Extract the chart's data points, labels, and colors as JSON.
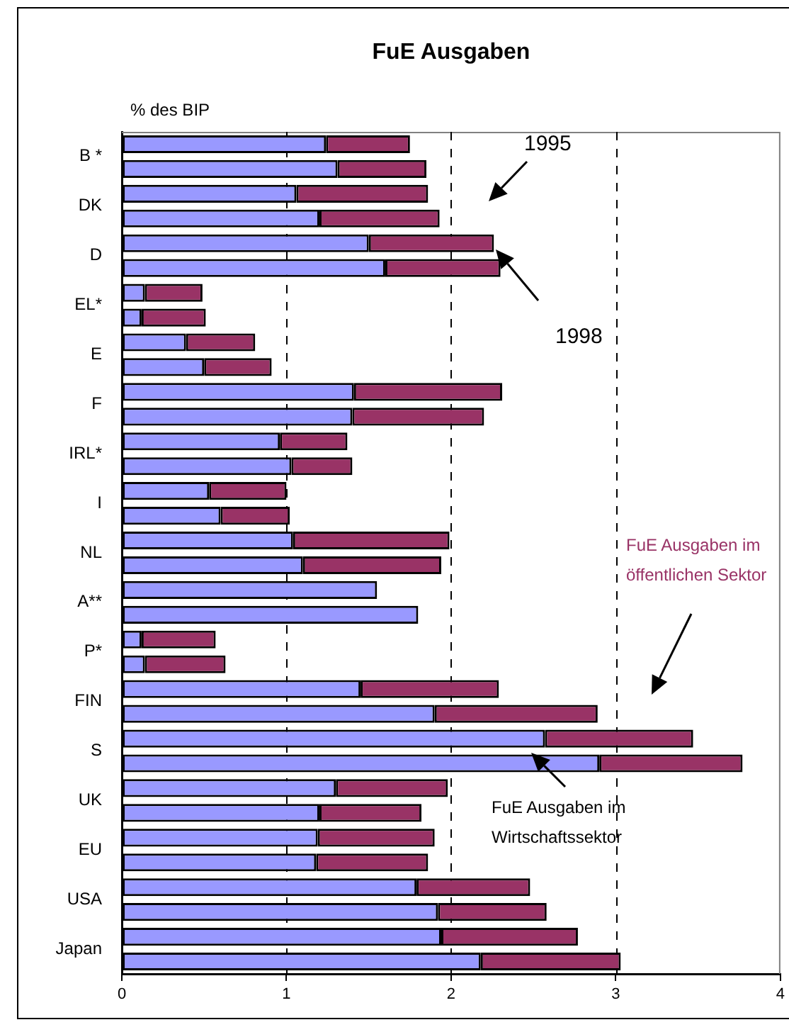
{
  "chart_data": {
    "type": "bar",
    "orientation": "horizontal",
    "stacked": true,
    "title": "FuE Ausgaben",
    "categories": [
      "B *",
      null,
      "DK",
      null,
      "D",
      null,
      "EL*",
      null,
      "E",
      null,
      "F",
      null,
      "IRL*",
      null,
      "I",
      null,
      "NL",
      null,
      "A**",
      null,
      "P*",
      null,
      "FIN",
      null,
      "S",
      null,
      "UK",
      null,
      "EU",
      null,
      "USA",
      null,
      "Japan",
      null
    ],
    "series": [
      {
        "name": "FuE Ausgaben im Wirtschaftssektor",
        "color": "#9999ff",
        "values": [
          1.24,
          1.31,
          1.06,
          1.2,
          1.5,
          1.6,
          0.14,
          0.12,
          0.39,
          0.5,
          1.41,
          1.4,
          0.96,
          1.03,
          0.53,
          0.6,
          1.04,
          1.1,
          1.55,
          1.8,
          0.12,
          0.14,
          1.45,
          1.9,
          2.57,
          2.9,
          1.3,
          1.2,
          1.19,
          1.18,
          1.79,
          1.92,
          1.94,
          2.18
        ]
      },
      {
        "name": "FuE Ausgaben im öffentlichen Sektor",
        "color": "#993366",
        "values": [
          0.51,
          0.54,
          0.8,
          0.73,
          0.76,
          0.7,
          0.35,
          0.39,
          0.42,
          0.41,
          0.9,
          0.8,
          0.41,
          0.37,
          0.47,
          0.42,
          0.95,
          0.84,
          null,
          null,
          0.45,
          0.49,
          0.84,
          0.99,
          0.9,
          0.87,
          0.68,
          0.62,
          0.71,
          0.68,
          0.69,
          0.66,
          0.83,
          0.85
        ]
      }
    ],
    "xlim": [
      0,
      4
    ],
    "xticks": [
      0,
      1,
      2,
      3,
      4
    ],
    "grid": "x",
    "annotations": [
      "% des BIP",
      "1995",
      "1998"
    ]
  }
}
